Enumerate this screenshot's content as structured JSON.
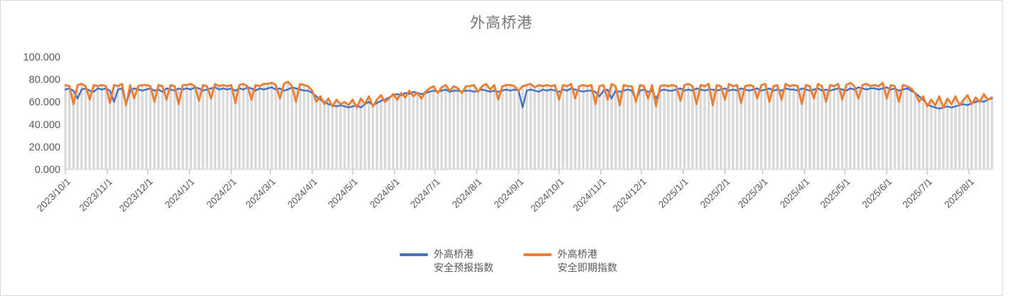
{
  "title": "外高桥港",
  "colors": {
    "forecast_line": "#4472C4",
    "spot_line": "#ED7D31",
    "dropline": "#D9D9D9",
    "axis": "#D9D9D9",
    "tick": "#BFBFBF",
    "axis_text": "#595959",
    "title_text": "#767676",
    "frame_border": "#D9D9D9"
  },
  "legend": {
    "items": [
      {
        "label_line1": "外高桥港",
        "label_line2": "安全预报指数",
        "color": "#4472C4"
      },
      {
        "label_line1": "外高桥港",
        "label_line2": "安全即期指数",
        "color": "#ED7D31"
      }
    ]
  },
  "chart_data": {
    "type": "line",
    "title": "外高桥港",
    "xlabel": "",
    "ylabel": "",
    "ylim": [
      0,
      100
    ],
    "grid": false,
    "legend_position": "bottom",
    "has_droplines": true,
    "y_tick_labels": [
      "0.000",
      "20.000",
      "40.000",
      "60.000",
      "80.000",
      "100.000"
    ],
    "y_tick_values": [
      0,
      20,
      40,
      60,
      80,
      100
    ],
    "x_tick_labels": [
      "2023/10/1",
      "2023/11/1",
      "2023/12/1",
      "2024/1/1",
      "2024/2/1",
      "2024/3/1",
      "2024/4/1",
      "2024/5/1",
      "2024/6/1",
      "2024/7/1",
      "2024/8/1",
      "2024/9/1",
      "2024/10/1",
      "2024/11/1",
      "2024/12/1",
      "2025/1/1",
      "2025/2/1",
      "2025/3/1",
      "2025/4/1",
      "2025/5/1",
      "2025/6/1",
      "2025/7/1",
      "2025/8/1"
    ],
    "x_tick_day_offsets": [
      0,
      31,
      61,
      92,
      123,
      152,
      183,
      213,
      244,
      274,
      305,
      336,
      366,
      397,
      427,
      458,
      489,
      517,
      548,
      578,
      609,
      639,
      670
    ],
    "x_start_date": "2023/10/1",
    "x_step_days": 3,
    "series": [
      {
        "name": "外高桥港安全预报指数",
        "color": "#4472C4",
        "values": [
          71,
          72,
          70,
          63,
          71,
          72,
          70,
          69,
          72,
          71,
          72,
          70,
          60,
          71,
          72,
          58,
          70,
          72,
          71,
          70,
          71,
          72,
          70,
          71,
          69,
          72,
          71,
          70,
          72,
          71,
          72,
          71,
          73,
          72,
          70,
          71,
          72,
          73,
          71,
          72,
          71,
          72,
          70,
          72,
          71,
          73,
          72,
          70,
          72,
          71,
          72,
          73,
          71,
          72,
          70,
          71,
          73,
          72,
          71,
          70,
          70,
          68,
          65,
          62,
          60,
          58,
          57,
          56,
          57,
          56,
          55,
          56,
          57,
          55,
          58,
          60,
          57,
          59,
          61,
          62,
          64,
          66,
          67,
          66,
          68,
          67,
          69,
          68,
          67,
          68,
          69,
          70,
          69,
          70,
          71,
          69,
          70,
          70,
          69,
          70,
          70,
          69,
          70,
          71,
          70,
          69,
          70,
          69,
          70,
          71,
          70,
          71,
          70,
          55,
          70,
          71,
          70,
          69,
          71,
          70,
          71,
          70,
          69,
          71,
          70,
          72,
          71,
          70,
          69,
          70,
          70,
          69,
          65,
          70,
          71,
          63,
          70,
          69,
          70,
          71,
          70,
          62,
          70,
          71,
          69,
          70,
          63,
          70,
          71,
          70,
          70,
          71,
          72,
          70,
          71,
          70,
          72,
          71,
          70,
          71,
          71,
          70,
          71,
          72,
          70,
          71,
          70,
          72,
          71,
          70,
          71,
          72,
          70,
          71,
          72,
          70,
          71,
          70,
          72,
          71,
          71,
          70,
          72,
          71,
          70,
          71,
          72,
          70,
          71,
          70,
          71,
          72,
          71,
          70,
          72,
          71,
          73,
          72,
          71,
          72,
          72,
          71,
          72,
          73,
          71,
          72,
          70,
          71,
          72,
          70,
          68,
          65,
          62,
          58,
          56,
          55,
          54,
          55,
          56,
          55,
          56,
          57,
          58,
          57,
          59,
          60,
          61,
          60,
          62,
          63
        ]
      },
      {
        "name": "外高桥港安全即期指数",
        "color": "#ED7D31",
        "values": [
          75,
          74,
          58,
          75,
          76,
          74,
          62,
          75,
          74,
          75,
          74,
          59,
          75,
          74,
          76,
          57,
          75,
          63,
          74,
          75,
          75,
          74,
          60,
          75,
          74,
          62,
          75,
          74,
          58,
          75,
          75,
          76,
          74,
          61,
          75,
          74,
          63,
          76,
          74,
          75,
          74,
          75,
          59,
          75,
          76,
          74,
          62,
          75,
          74,
          76,
          76,
          77,
          75,
          63,
          76,
          78,
          74,
          60,
          76,
          75,
          74,
          70,
          60,
          65,
          58,
          63,
          56,
          62,
          58,
          60,
          57,
          62,
          55,
          63,
          58,
          65,
          56,
          62,
          66,
          60,
          63,
          67,
          62,
          68,
          64,
          70,
          65,
          68,
          63,
          69,
          72,
          74,
          68,
          73,
          75,
          70,
          74,
          72,
          68,
          74,
          74,
          75,
          69,
          74,
          76,
          71,
          75,
          62,
          74,
          75,
          75,
          74,
          70,
          74,
          75,
          76,
          73,
          75,
          74,
          75,
          74,
          75,
          62,
          75,
          74,
          76,
          63,
          74,
          75,
          74,
          75,
          58,
          74,
          75,
          62,
          76,
          74,
          57,
          75,
          74,
          74,
          60,
          75,
          74,
          63,
          75,
          56,
          74,
          75,
          74,
          75,
          74,
          61,
          75,
          76,
          74,
          58,
          75,
          74,
          76,
          57,
          75,
          74,
          62,
          76,
          74,
          75,
          59,
          74,
          75,
          74,
          63,
          75,
          76,
          60,
          74,
          75,
          62,
          76,
          74,
          75,
          74,
          58,
          75,
          74,
          63,
          76,
          74,
          60,
          75,
          74,
          76,
          62,
          75,
          77,
          74,
          63,
          75,
          76,
          74,
          75,
          74,
          77,
          63,
          75,
          74,
          60,
          75,
          74,
          72,
          68,
          60,
          65,
          56,
          62,
          57,
          65,
          55,
          63,
          58,
          65,
          57,
          62,
          66,
          58,
          64,
          60,
          67,
          62,
          64
        ]
      }
    ]
  }
}
